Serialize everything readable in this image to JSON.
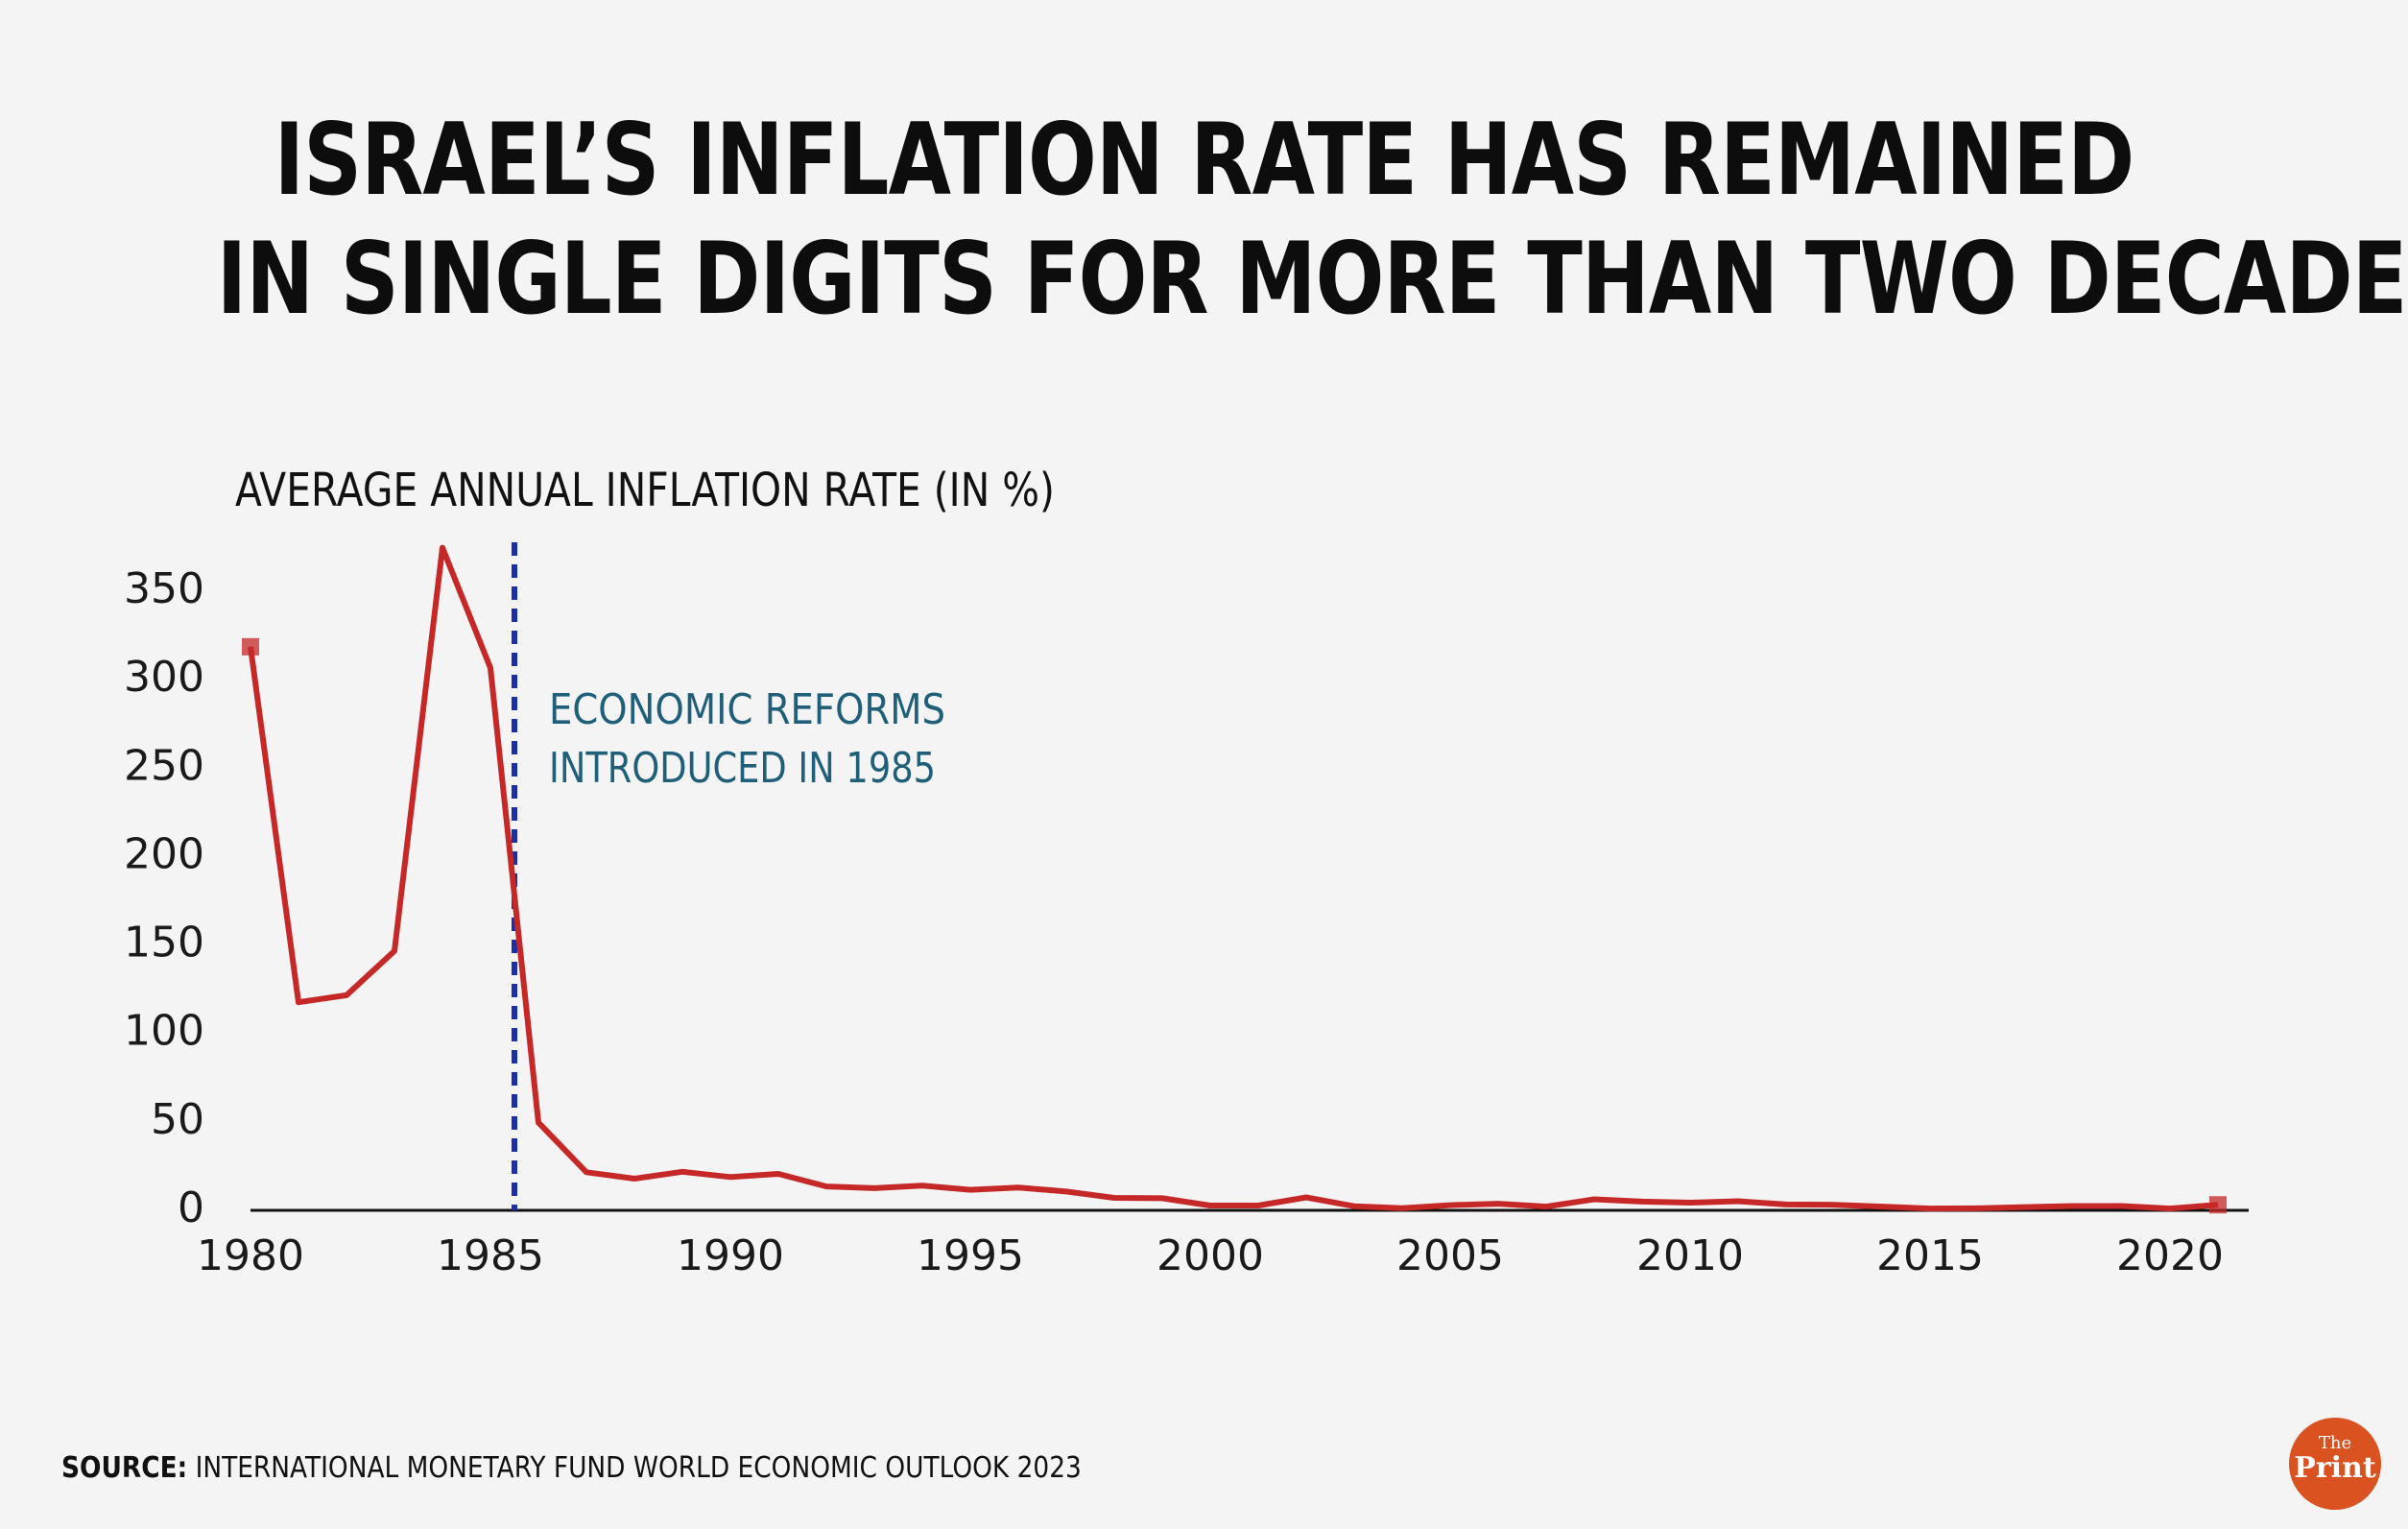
{
  "colors": {
    "line": "#c62828",
    "reform_line": "#1a2fa8",
    "annotation": "#1f5f7a",
    "logo": "#d9521f"
  },
  "title_lines": [
    "ISRAEL’S INFLATION RATE HAS REMAINED",
    "IN SINGLE DIGITS FOR MORE THAN TWO DECADES"
  ],
  "source": {
    "prefix": "SOURCE:",
    "text": " INTERNATIONAL MONETARY FUND WORLD ECONOMIC OUTLOOK 2023"
  },
  "logo": {
    "the": "The",
    "print": "Print"
  },
  "chart_data": {
    "type": "line",
    "title": "ISRAEL’S INFLATION RATE HAS REMAINED IN SINGLE DIGITS FOR MORE THAN TWO DECADES",
    "subtitle": "AVERAGE ANNUAL INFLATION RATE (IN %)",
    "xlabel": "",
    "ylabel": "",
    "xlim": [
      1980,
      2021
    ],
    "ylim": [
      0,
      350
    ],
    "x_ticks": [
      "1980",
      "1985",
      "1990",
      "1995",
      "2000",
      "2005",
      "2010",
      "2015",
      "2020"
    ],
    "y_ticks": [
      "0",
      "50",
      "100",
      "150",
      "200",
      "250",
      "300",
      "350"
    ],
    "grid": false,
    "legend": "none",
    "x": [
      1980,
      1981,
      1982,
      1983,
      1984,
      1985,
      1986,
      1987,
      1988,
      1989,
      1990,
      1991,
      1992,
      1993,
      1994,
      1995,
      1996,
      1997,
      1998,
      1999,
      2000,
      2001,
      2002,
      2003,
      2004,
      2005,
      2006,
      2007,
      2008,
      2009,
      2010,
      2011,
      2012,
      2013,
      2014,
      2015,
      2016,
      2017,
      2018,
      2019,
      2020,
      2021
    ],
    "series": [
      {
        "values": [
          317,
          116,
          120,
          145,
          373,
          305,
          48,
          19.9,
          16.3,
          20.2,
          17.2,
          19,
          11.9,
          10.9,
          12.3,
          10,
          11.3,
          9,
          5.4,
          5.2,
          1.1,
          1.1,
          5.7,
          0.7,
          -0.4,
          1.3,
          2.1,
          0.5,
          4.6,
          3.3,
          2.7,
          3.5,
          1.7,
          1.5,
          0.5,
          -0.6,
          -0.5,
          0.2,
          0.8,
          0.8,
          -0.6,
          1.5
        ]
      }
    ],
    "annotations": [
      {
        "x": 1985.5,
        "text_lines": [
          "ECONOMIC REFORMS",
          "INTRODUCED IN 1985"
        ]
      }
    ]
  }
}
